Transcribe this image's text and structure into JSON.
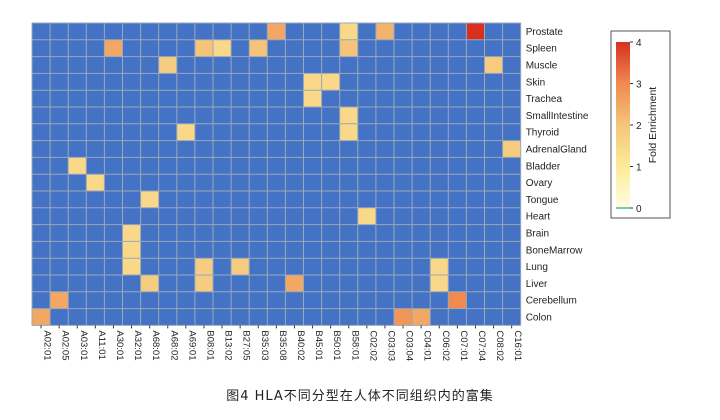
{
  "caption": "图4 HLA不同分型在人体不同组织内的富集",
  "chart_data": {
    "type": "heatmap",
    "x_categories": [
      "A02:01",
      "A02:05",
      "A03:01",
      "A11:01",
      "A30:01",
      "A32:01",
      "A68:01",
      "A68:02",
      "A69:01",
      "B08:01",
      "B13:02",
      "B27:05",
      "B35:03",
      "B35:08",
      "B40:02",
      "B45:01",
      "B50:01",
      "B58:01",
      "C02:02",
      "C03:03",
      "C03:04",
      "C04:01",
      "C06:02",
      "C07:01",
      "C07:04",
      "C08:02",
      "C16:01"
    ],
    "y_categories": [
      "Prostate",
      "Spleen",
      "Muscle",
      "Skin",
      "Trachea",
      "SmallIntestine",
      "Thyroid",
      "AdrenalGland",
      "Bladder",
      "Ovary",
      "Tongue",
      "Heart",
      "Brain",
      "BoneMarrow",
      "Lung",
      "Liver",
      "Cerebellum",
      "Colon"
    ],
    "legend_title": "Fold Enrichment",
    "legend_ticks": [
      0,
      1,
      2,
      3,
      4
    ],
    "value_range": [
      0,
      4
    ],
    "background_value": 0,
    "colors": {
      "background": "#4472C4",
      "grid": "#9AA8B8",
      "scale": [
        "#FFFDE0",
        "#FCEB98",
        "#F5C47A",
        "#F08A4F",
        "#D7301F"
      ]
    },
    "cells": [
      {
        "y": "Prostate",
        "x": "B35:08",
        "value": 2.5
      },
      {
        "y": "Prostate",
        "x": "B58:01",
        "value": 1.5
      },
      {
        "y": "Prostate",
        "x": "C03:03",
        "value": 2.3
      },
      {
        "y": "Prostate",
        "x": "C07:04",
        "value": 4.0
      },
      {
        "y": "Spleen",
        "x": "A30:01",
        "value": 2.5
      },
      {
        "y": "Spleen",
        "x": "B08:01",
        "value": 2.0
      },
      {
        "y": "Spleen",
        "x": "B13:02",
        "value": 1.5
      },
      {
        "y": "Spleen",
        "x": "B35:03",
        "value": 2.0
      },
      {
        "y": "Spleen",
        "x": "B58:01",
        "value": 2.0
      },
      {
        "y": "Muscle",
        "x": "A68:02",
        "value": 1.8
      },
      {
        "y": "Muscle",
        "x": "C08:02",
        "value": 1.8
      },
      {
        "y": "Skin",
        "x": "B45:01",
        "value": 1.5
      },
      {
        "y": "Skin",
        "x": "B50:01",
        "value": 1.5
      },
      {
        "y": "Trachea",
        "x": "B45:01",
        "value": 1.5
      },
      {
        "y": "SmallIntestine",
        "x": "B58:01",
        "value": 1.5
      },
      {
        "y": "Thyroid",
        "x": "A69:01",
        "value": 1.5
      },
      {
        "y": "Thyroid",
        "x": "B58:01",
        "value": 1.5
      },
      {
        "y": "AdrenalGland",
        "x": "C16:01",
        "value": 1.8
      },
      {
        "y": "Bladder",
        "x": "A03:01",
        "value": 1.5
      },
      {
        "y": "Ovary",
        "x": "A11:01",
        "value": 1.5
      },
      {
        "y": "Tongue",
        "x": "A68:01",
        "value": 1.5
      },
      {
        "y": "Heart",
        "x": "C02:02",
        "value": 1.5
      },
      {
        "y": "Brain",
        "x": "A32:01",
        "value": 1.5
      },
      {
        "y": "BoneMarrow",
        "x": "A32:01",
        "value": 1.5
      },
      {
        "y": "Lung",
        "x": "A32:01",
        "value": 1.5
      },
      {
        "y": "Lung",
        "x": "B08:01",
        "value": 1.8
      },
      {
        "y": "Lung",
        "x": "B27:05",
        "value": 1.8
      },
      {
        "y": "Lung",
        "x": "C06:02",
        "value": 1.5
      },
      {
        "y": "Liver",
        "x": "A68:01",
        "value": 1.8
      },
      {
        "y": "Liver",
        "x": "B08:01",
        "value": 1.8
      },
      {
        "y": "Liver",
        "x": "B40:02",
        "value": 2.5
      },
      {
        "y": "Liver",
        "x": "C06:02",
        "value": 1.5
      },
      {
        "y": "Cerebellum",
        "x": "A02:05",
        "value": 2.5
      },
      {
        "y": "Cerebellum",
        "x": "C07:01",
        "value": 3.0
      },
      {
        "y": "Colon",
        "x": "A02:01",
        "value": 2.5
      },
      {
        "y": "Colon",
        "x": "C03:04",
        "value": 2.8
      },
      {
        "y": "Colon",
        "x": "C04:01",
        "value": 2.5
      }
    ]
  }
}
